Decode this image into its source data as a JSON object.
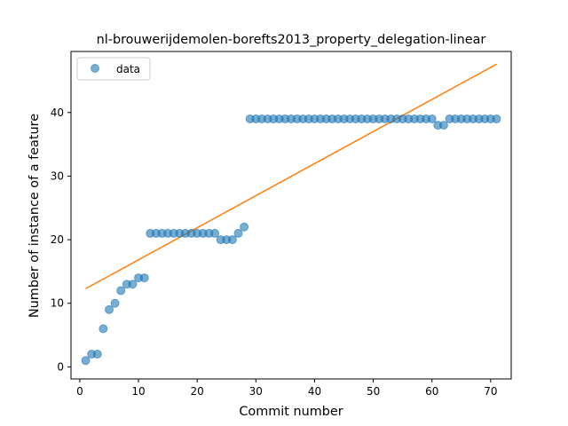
{
  "chart_data": {
    "type": "scatter",
    "title": "nl-brouwerijdemolen-borefts2013_property_delegation-linear",
    "xlabel": "Commit number",
    "ylabel": "Number of instance of a feature",
    "xlim": [
      -1.5,
      73.5
    ],
    "ylim": [
      -1.9,
      49.6
    ],
    "xticks": [
      0,
      10,
      20,
      30,
      40,
      50,
      60,
      70
    ],
    "yticks": [
      0,
      10,
      20,
      30,
      40
    ],
    "grid": false,
    "legend": {
      "placement": "upper-left",
      "entries": [
        "data"
      ]
    },
    "series": [
      {
        "name": "data",
        "kind": "scatter",
        "color": "#1f77b4",
        "x": [
          1,
          2,
          3,
          4,
          5,
          6,
          7,
          8,
          9,
          10,
          11,
          12,
          13,
          14,
          15,
          16,
          17,
          18,
          19,
          20,
          21,
          22,
          23,
          24,
          25,
          26,
          27,
          28,
          29,
          30,
          31,
          32,
          33,
          34,
          35,
          36,
          37,
          38,
          39,
          40,
          41,
          42,
          43,
          44,
          45,
          46,
          47,
          48,
          49,
          50,
          51,
          52,
          53,
          54,
          55,
          56,
          57,
          58,
          59,
          60,
          61,
          62,
          63,
          64,
          65,
          66,
          67,
          68,
          69,
          70,
          71
        ],
        "y": [
          1,
          2,
          2,
          6,
          9,
          10,
          12,
          13,
          13,
          14,
          14,
          21,
          21,
          21,
          21,
          21,
          21,
          21,
          21,
          21,
          21,
          21,
          21,
          20,
          20,
          20,
          21,
          22,
          39,
          39,
          39,
          39,
          39,
          39,
          39,
          39,
          39,
          39,
          39,
          39,
          39,
          39,
          39,
          39,
          39,
          39,
          39,
          39,
          39,
          39,
          39,
          39,
          39,
          39,
          39,
          39,
          39,
          39,
          39,
          39,
          38,
          38,
          39,
          39,
          39,
          39,
          39,
          39,
          39,
          39,
          39
        ]
      },
      {
        "kind": "line",
        "color": "#ff7f0e",
        "x": [
          1,
          71
        ],
        "y": [
          12.3,
          47.6
        ]
      }
    ]
  }
}
